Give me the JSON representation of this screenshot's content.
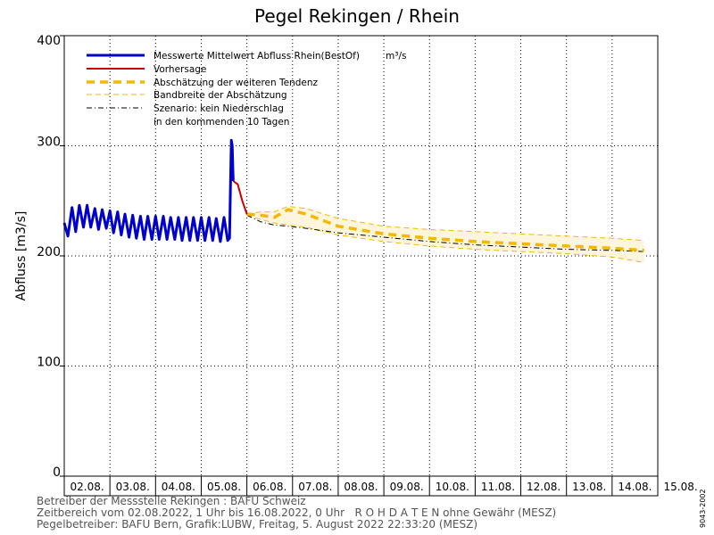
{
  "chart_data": {
    "type": "line",
    "title": "Pegel Rekingen / Rhein",
    "ylabel": "Abfluss [m3/s]",
    "ylim": [
      0,
      400
    ],
    "yticks": [
      0,
      100,
      200,
      300,
      400
    ],
    "categories": [
      "02.08.",
      "03.08.",
      "04.08.",
      "05.08.",
      "06.08.",
      "07.08.",
      "08.08.",
      "09.08.",
      "10.08.",
      "11.08.",
      "12.08.",
      "13.08.",
      "14.08.",
      "15.08."
    ],
    "grid": true,
    "legend_position": "top-left",
    "legend_unit": "m³/s",
    "legend_note": "in den kommenden 10 Tagen",
    "colors": {
      "measured": "#0000cc",
      "forecast": "#cc0000",
      "tendency": "#f5b800",
      "band": "#f5b800",
      "band_fill": "#fdf6dc",
      "scenario": "#000000"
    },
    "series": [
      {
        "name": "Messwerte Mittelwert Abfluss Rhein(BestOf)",
        "style": "solid-thick",
        "x": [
          2.0,
          2.08,
          2.17,
          2.25,
          2.33,
          2.42,
          2.5,
          2.58,
          2.67,
          2.75,
          2.83,
          2.92,
          3.0,
          3.08,
          3.17,
          3.25,
          3.33,
          3.42,
          3.5,
          3.58,
          3.67,
          3.75,
          3.83,
          3.92,
          4.0,
          4.08,
          4.17,
          4.25,
          4.33,
          4.42,
          4.5,
          4.58,
          4.67,
          4.75,
          4.83,
          4.92,
          5.0,
          5.08,
          5.17,
          5.25,
          5.33,
          5.42,
          5.5,
          5.58,
          5.62,
          5.64,
          5.66,
          5.68,
          5.7
        ],
        "y": [
          230,
          218,
          244,
          222,
          246,
          226,
          246,
          226,
          243,
          224,
          242,
          225,
          241,
          221,
          240,
          219,
          238,
          217,
          237,
          216,
          236,
          215,
          236,
          215,
          236,
          215,
          236,
          215,
          235,
          215,
          235,
          214,
          235,
          214,
          235,
          214,
          235,
          214,
          235,
          214,
          234,
          213,
          235,
          214,
          216,
          262,
          305,
          300,
          268
        ]
      },
      {
        "name": "Vorhersage",
        "style": "solid-thin",
        "x": [
          5.7,
          5.8,
          5.9,
          6.0
        ],
        "y": [
          268,
          265,
          250,
          238
        ]
      },
      {
        "name": "Abschätzung der weiteren Tendenz",
        "style": "dashed-thick",
        "x": [
          6.0,
          6.3,
          6.6,
          6.9,
          7.3,
          8.0,
          9.0,
          10.0,
          11.0,
          12.0,
          13.0,
          14.0,
          14.7
        ],
        "y": [
          238,
          237,
          235,
          242,
          238,
          227,
          220,
          216,
          213,
          211,
          209,
          207,
          205
        ]
      },
      {
        "name": "Bandbreite der Abschätzung",
        "style": "dashed-thin",
        "x": [
          6.0,
          6.3,
          6.6,
          6.9,
          7.3,
          8.0,
          9.0,
          10.0,
          11.0,
          12.0,
          13.0,
          14.0,
          14.7
        ],
        "y": [
          238,
          240,
          240,
          245,
          243,
          234,
          227,
          224,
          222,
          220,
          218,
          216,
          214
        ]
      },
      {
        "name": "",
        "style": "dashed-thin",
        "x": [
          6.0,
          6.3,
          6.6,
          6.9,
          7.3,
          8.0,
          9.0,
          10.0,
          11.0,
          12.0,
          13.0,
          14.0,
          14.7
        ],
        "y": [
          237,
          233,
          230,
          228,
          226,
          219,
          213,
          209,
          206,
          204,
          202,
          199,
          194
        ]
      },
      {
        "name": "Szenario: kein Niederschlag",
        "style": "dashdot",
        "x": [
          6.0,
          6.3,
          6.6,
          6.9,
          7.3,
          8.0,
          9.0,
          10.0,
          11.0,
          12.0,
          13.0,
          14.0,
          14.7
        ],
        "y": [
          237,
          231,
          228,
          227,
          225,
          221,
          217,
          213,
          210,
          208,
          206,
          205,
          204
        ]
      }
    ]
  },
  "footer": {
    "line1": "Betreiber der Messstelle Rekingen : BAFU Schweiz",
    "line2": "Zeitbereich vom 02.08.2022, 1 Uhr bis 16.08.2022, 0 Uhr   R O H D A T E N ohne Gewähr (MESZ)",
    "line3": "Pegelbetreiber: BAFU Bern, Grafik:LUBW, Freitag, 5. August 2022 22:33:20 (MESZ)"
  },
  "side_code": "9043-2002"
}
